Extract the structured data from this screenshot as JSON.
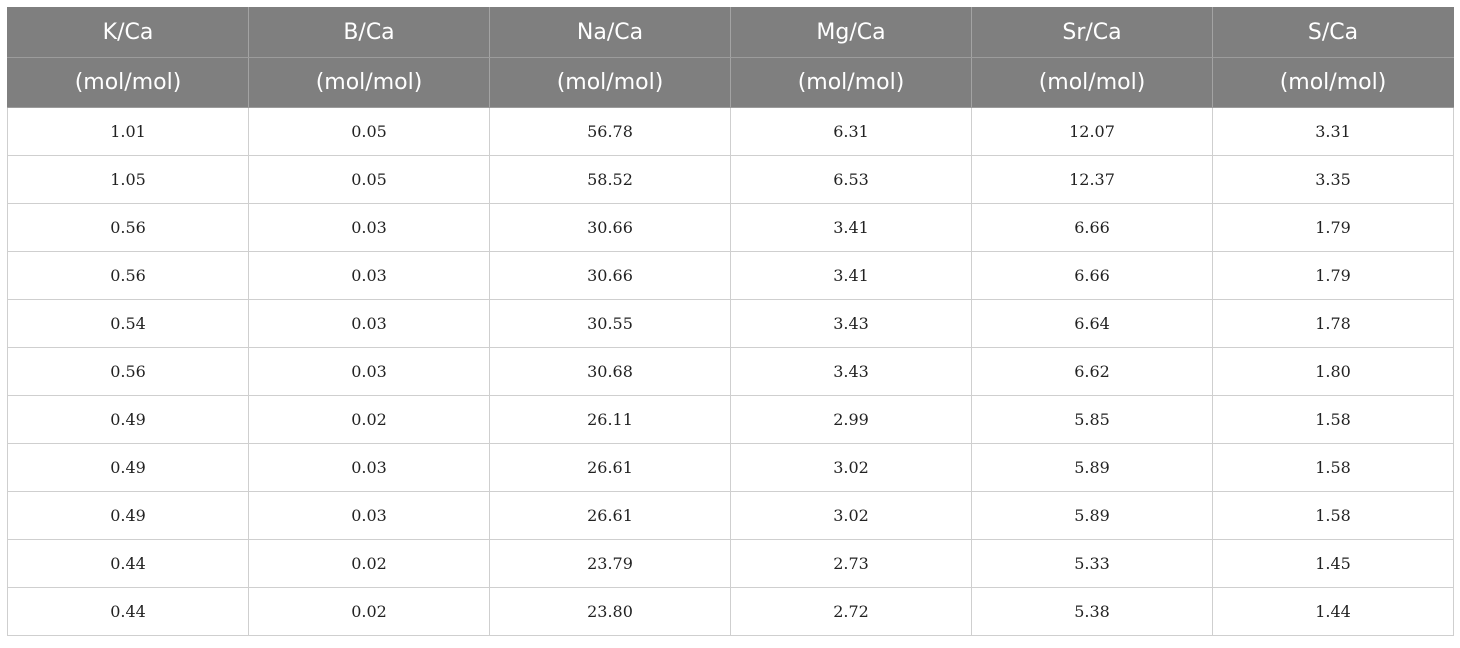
{
  "table": {
    "columns": [
      {
        "name": "K/Ca",
        "unit": "(mol/mol)"
      },
      {
        "name": "B/Ca",
        "unit": "(mol/mol)"
      },
      {
        "name": "Na/Ca",
        "unit": "(mol/mol)"
      },
      {
        "name": "Mg/Ca",
        "unit": "(mol/mol)"
      },
      {
        "name": "Sr/Ca",
        "unit": "(mol/mol)"
      },
      {
        "name": "S/Ca",
        "unit": "(mol/mol)"
      }
    ],
    "rows": [
      [
        "1.01",
        "0.05",
        "56.78",
        "6.31",
        "12.07",
        "3.31"
      ],
      [
        "1.05",
        "0.05",
        "58.52",
        "6.53",
        "12.37",
        "3.35"
      ],
      [
        "0.56",
        "0.03",
        "30.66",
        "3.41",
        "6.66",
        "1.79"
      ],
      [
        "0.56",
        "0.03",
        "30.66",
        "3.41",
        "6.66",
        "1.79"
      ],
      [
        "0.54",
        "0.03",
        "30.55",
        "3.43",
        "6.64",
        "1.78"
      ],
      [
        "0.56",
        "0.03",
        "30.68",
        "3.43",
        "6.62",
        "1.80"
      ],
      [
        "0.49",
        "0.02",
        "26.11",
        "2.99",
        "5.85",
        "1.58"
      ],
      [
        "0.49",
        "0.03",
        "26.61",
        "3.02",
        "5.89",
        "1.58"
      ],
      [
        "0.49",
        "0.03",
        "26.61",
        "3.02",
        "5.89",
        "1.58"
      ],
      [
        "0.44",
        "0.02",
        "23.79",
        "2.73",
        "5.33",
        "1.45"
      ],
      [
        "0.44",
        "0.02",
        "23.80",
        "2.72",
        "5.38",
        "1.44"
      ]
    ]
  },
  "colors": {
    "header_bg": "#7f7f7f",
    "header_text": "#ffffff",
    "grid_line": "#cfcfcf",
    "body_text": "#222222"
  }
}
